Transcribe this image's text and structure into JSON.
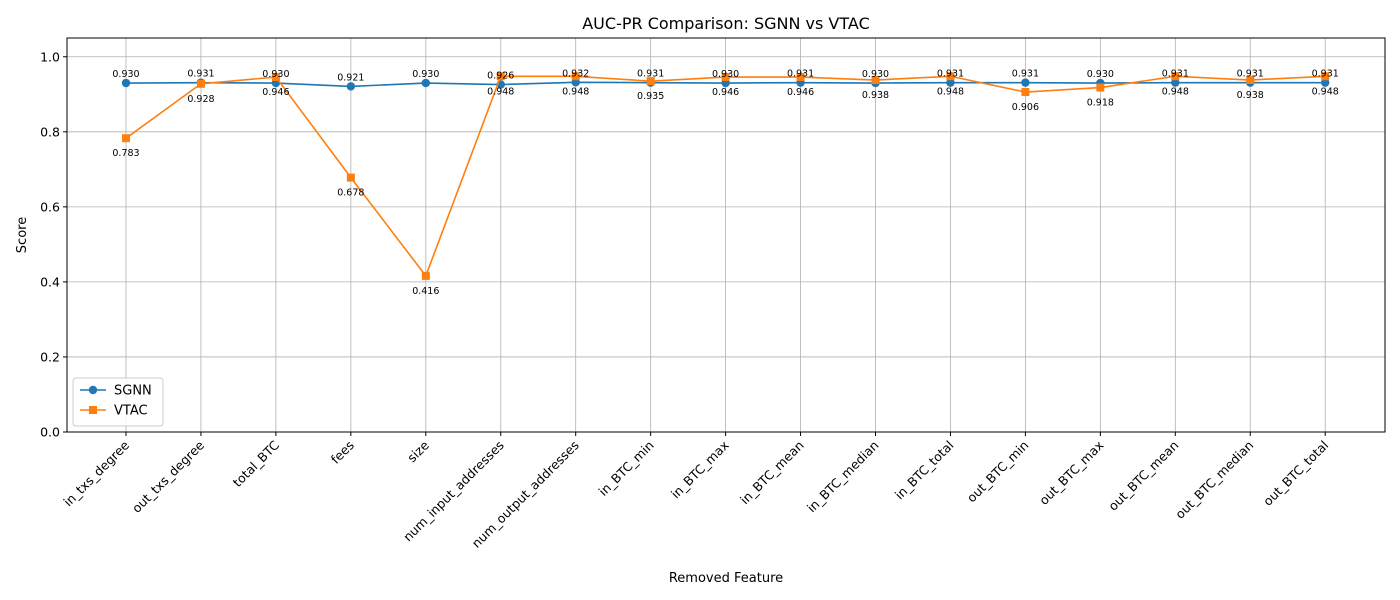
{
  "chart_data": {
    "type": "line",
    "title": "AUC-PR Comparison: SGNN vs VTAC",
    "xlabel": "Removed Feature",
    "ylabel": "Score",
    "ylim": [
      0.0,
      1.05
    ],
    "yticks": [
      0.0,
      0.2,
      0.4,
      0.6,
      0.8,
      1.0
    ],
    "grid": true,
    "legend_position": "lower-left",
    "categories": [
      "in_txs_degree",
      "out_txs_degree",
      "total_BTC",
      "fees",
      "size",
      "num_input_addresses",
      "num_output_addresses",
      "in_BTC_min",
      "in_BTC_max",
      "in_BTC_mean",
      "in_BTC_median",
      "in_BTC_total",
      "out_BTC_min",
      "out_BTC_max",
      "out_BTC_mean",
      "out_BTC_median",
      "out_BTC_total"
    ],
    "series": [
      {
        "name": "SGNN",
        "color": "#1f77b4",
        "marker": "circle",
        "values": [
          0.93,
          0.931,
          0.93,
          0.921,
          0.93,
          0.926,
          0.932,
          0.931,
          0.93,
          0.931,
          0.93,
          0.931,
          0.931,
          0.93,
          0.931,
          0.931,
          0.931
        ],
        "labels": [
          "0.930",
          "0.931",
          "0.930",
          "0.921",
          "0.930",
          "0.926",
          "0.932",
          "0.931",
          "0.930",
          "0.931",
          "0.930",
          "0.931",
          "0.931",
          "0.930",
          "0.931",
          "0.931",
          "0.931"
        ]
      },
      {
        "name": "VTAC",
        "color": "#ff7f0e",
        "marker": "square",
        "values": [
          0.783,
          0.928,
          0.946,
          0.678,
          0.416,
          0.948,
          0.948,
          0.935,
          0.946,
          0.946,
          0.938,
          0.948,
          0.906,
          0.918,
          0.948,
          0.938,
          0.948
        ],
        "labels": [
          "0.783",
          "0.928",
          "0.946",
          "0.678",
          "0.416",
          "0.948",
          "0.948",
          "0.935",
          "0.946",
          "0.946",
          "0.938",
          "0.948",
          "0.906",
          "0.918",
          "0.948",
          "0.938",
          "0.948"
        ]
      }
    ]
  }
}
